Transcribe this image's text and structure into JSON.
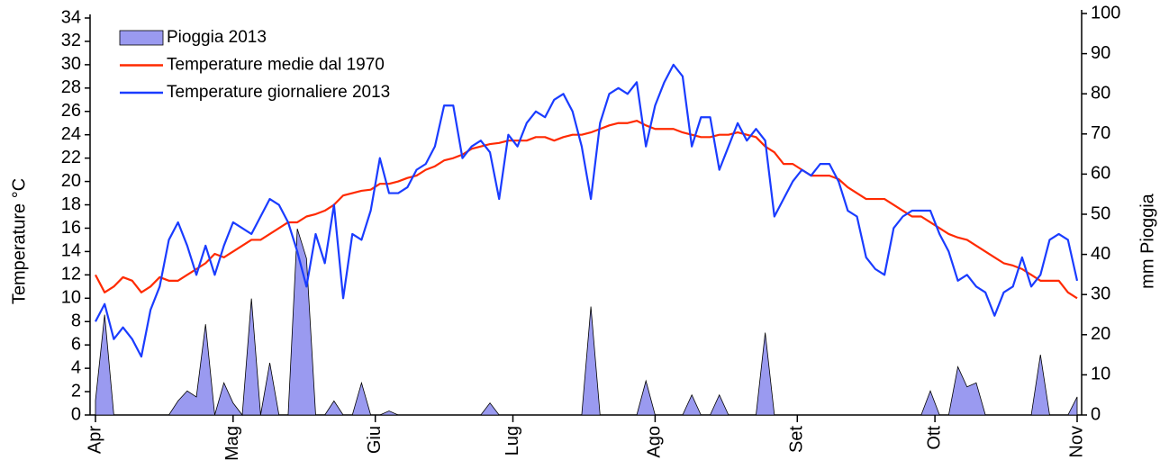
{
  "chart_data": {
    "type": "line",
    "ylabel": "Temperature °C",
    "y2label": "mm Pioggia",
    "legend": "upper left",
    "xlim": [
      0,
      214
    ],
    "xticks": [
      {
        "value": 0,
        "label": "Apr"
      },
      {
        "value": 30,
        "label": "Mag"
      },
      {
        "value": 61,
        "label": "Giu"
      },
      {
        "value": 91,
        "label": "Lug"
      },
      {
        "value": 122,
        "label": "Ago"
      },
      {
        "value": 153,
        "label": "Set"
      },
      {
        "value": 183,
        "label": "Ott"
      },
      {
        "value": 214,
        "label": "Nov"
      }
    ],
    "ylim": [
      0,
      34
    ],
    "yticks": [
      0,
      2,
      4,
      6,
      8,
      10,
      12,
      14,
      16,
      18,
      20,
      22,
      24,
      26,
      28,
      30,
      32,
      34
    ],
    "y2lim": [
      0,
      100
    ],
    "y2ticks": [
      0,
      10,
      20,
      30,
      40,
      50,
      60,
      70,
      80,
      90,
      100
    ],
    "x": [
      0,
      2,
      4,
      6,
      8,
      10,
      12,
      14,
      16,
      18,
      20,
      22,
      24,
      26,
      28,
      30,
      32,
      34,
      36,
      38,
      40,
      42,
      44,
      46,
      48,
      50,
      52,
      54,
      56,
      58,
      60,
      62,
      64,
      66,
      68,
      70,
      72,
      74,
      76,
      78,
      80,
      82,
      84,
      86,
      88,
      90,
      92,
      94,
      96,
      98,
      100,
      102,
      104,
      106,
      108,
      110,
      112,
      114,
      116,
      118,
      120,
      122,
      124,
      126,
      128,
      130,
      132,
      134,
      136,
      138,
      140,
      142,
      144,
      146,
      148,
      150,
      152,
      154,
      156,
      158,
      160,
      162,
      164,
      166,
      168,
      170,
      172,
      174,
      176,
      178,
      180,
      182,
      184,
      186,
      188,
      190,
      192,
      194,
      196,
      198,
      200,
      202,
      204,
      206,
      208,
      210,
      212,
      214
    ],
    "series": [
      {
        "name": "Pioggia 2013",
        "kind": "area",
        "axis": "y2",
        "color": "#9a9af0",
        "values": [
          3.6,
          25,
          0,
          0,
          0,
          0,
          0,
          0,
          0,
          3.5,
          6,
          4.5,
          22.6,
          0,
          8,
          3,
          0,
          29,
          0,
          13,
          0,
          0,
          46.4,
          39,
          0,
          0,
          3.5,
          0,
          0,
          8,
          0,
          0,
          1,
          0,
          0,
          0,
          0,
          0,
          0,
          0,
          0,
          0,
          0,
          3,
          0,
          0,
          0,
          0,
          0,
          0,
          0,
          0,
          0,
          0,
          27,
          0,
          0,
          0,
          0,
          0,
          8.5,
          0,
          0,
          0,
          0,
          5,
          0,
          0,
          5,
          0,
          0,
          0,
          0,
          20.5,
          0,
          0,
          0,
          0,
          0,
          0,
          0,
          0,
          0,
          0,
          0,
          0,
          0,
          0,
          0,
          0,
          0,
          6,
          0,
          0,
          12,
          7,
          8,
          0,
          0,
          0,
          0,
          0,
          0,
          15,
          0,
          0,
          0,
          4.5
        ]
      },
      {
        "name": "Temperature medie dal 1970",
        "kind": "line",
        "color": "#ff2a00",
        "values": [
          12,
          10.5,
          11,
          11.8,
          11.5,
          10.5,
          11,
          11.8,
          11.5,
          11.5,
          12,
          12.5,
          13,
          13.8,
          13.5,
          14,
          14.5,
          15,
          15,
          15.5,
          16,
          16.5,
          16.5,
          17,
          17.2,
          17.5,
          18,
          18.8,
          19,
          19.2,
          19.3,
          19.8,
          19.8,
          20,
          20.3,
          20.5,
          21,
          21.3,
          21.8,
          22,
          22.3,
          22.8,
          23,
          23.2,
          23.3,
          23.5,
          23.5,
          23.5,
          23.8,
          23.8,
          23.5,
          23.8,
          24,
          24,
          24.2,
          24.5,
          24.8,
          25,
          25,
          25.2,
          24.8,
          24.5,
          24.5,
          24.5,
          24.2,
          24,
          23.8,
          23.8,
          24,
          24,
          24.2,
          24,
          23.8,
          23,
          22.5,
          21.5,
          21.5,
          21,
          20.5,
          20.5,
          20.5,
          20.2,
          19.5,
          19,
          18.5,
          18.5,
          18.5,
          18,
          17.5,
          17,
          17,
          16.5,
          16,
          15.5,
          15.2,
          15,
          14.5,
          14,
          13.5,
          13,
          12.8,
          12.5,
          12,
          11.5,
          11.5,
          11.5,
          10.5,
          10
        ]
      },
      {
        "name": "Temperature giornaliere 2013",
        "kind": "line",
        "color": "#1a3cff",
        "values": [
          8,
          9.5,
          6.5,
          7.5,
          6.5,
          5,
          9,
          11,
          15,
          16.5,
          14.5,
          12,
          14.5,
          12,
          14.5,
          16.5,
          16,
          15.5,
          17,
          18.5,
          18,
          16.5,
          14,
          11,
          15.5,
          13,
          18,
          10,
          15.5,
          15,
          17.5,
          22,
          19,
          19,
          19.5,
          21,
          21.5,
          23,
          26.5,
          26.5,
          22,
          23,
          23.5,
          22.5,
          18.5,
          24,
          23,
          25,
          26,
          25.5,
          27,
          27.5,
          26,
          23,
          18.5,
          25,
          27.5,
          28,
          27.5,
          28.5,
          23,
          26.5,
          28.5,
          30,
          29,
          23,
          25.5,
          25.5,
          21,
          23,
          25,
          23.5,
          24.5,
          23.5,
          17,
          18.5,
          20,
          21,
          20.5,
          21.5,
          21.5,
          20,
          17.5,
          17,
          13.5,
          12.5,
          12,
          16,
          17,
          17.5,
          17.5,
          17.5,
          15.5,
          14,
          11.5,
          12,
          11,
          10.5,
          8.5,
          10.5,
          11,
          13.5,
          11,
          12,
          15,
          15.5,
          15,
          11.5
        ]
      }
    ]
  }
}
